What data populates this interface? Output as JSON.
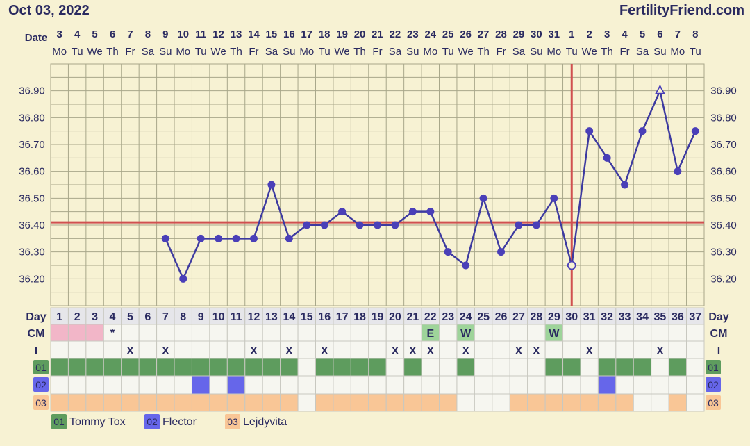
{
  "header": {
    "date": "Oct 03, 2022",
    "brand": "FertilityFriend.com"
  },
  "row_labels": {
    "date": "Date",
    "day": "Day",
    "cm": "CM",
    "intercourse": "I",
    "med_01": "01",
    "med_02": "02",
    "med_03": "03"
  },
  "colors": {
    "grid": "#a8a78a",
    "line": "#3d3aa0",
    "marker": "#4a3fb8",
    "coverline": "#d05050",
    "period": "#f2b6c8",
    "cm_fill": "#9ed49a",
    "med_01": "#5e9c5e",
    "med_02": "#6666ea",
    "med_03": "#f9c696",
    "cell_bg": "#f6f6f0"
  },
  "chart_data": {
    "type": "line",
    "title": "",
    "ylabel": "",
    "xlabel": "",
    "ylim": [
      36.1,
      37.0
    ],
    "yticks": [
      36.2,
      36.3,
      36.4,
      36.5,
      36.6,
      36.7,
      36.8,
      36.9
    ],
    "ytick_labels": [
      "36.20",
      "36.30",
      "36.40",
      "36.50",
      "36.60",
      "36.70",
      "36.80",
      "36.90"
    ],
    "dates": [
      "3",
      "4",
      "5",
      "6",
      "7",
      "8",
      "9",
      "10",
      "11",
      "12",
      "13",
      "14",
      "15",
      "16",
      "17",
      "18",
      "19",
      "20",
      "21",
      "22",
      "23",
      "24",
      "25",
      "26",
      "27",
      "28",
      "29",
      "30",
      "31",
      "1",
      "2",
      "3",
      "4",
      "5",
      "6",
      "7",
      "8"
    ],
    "weekdays": [
      "Mo",
      "Tu",
      "We",
      "Th",
      "Fr",
      "Sa",
      "Su",
      "Mo",
      "Tu",
      "We",
      "Th",
      "Fr",
      "Sa",
      "Su",
      "Mo",
      "Tu",
      "We",
      "Th",
      "Fr",
      "Sa",
      "Su",
      "Mo",
      "Tu",
      "We",
      "Th",
      "Fr",
      "Sa",
      "Su",
      "Mo",
      "Tu",
      "We",
      "Th",
      "Fr",
      "Sa",
      "Su",
      "Mo",
      "Tu"
    ],
    "cycle_days": [
      "1",
      "2",
      "3",
      "4",
      "5",
      "6",
      "7",
      "8",
      "9",
      "10",
      "11",
      "12",
      "13",
      "14",
      "15",
      "16",
      "17",
      "18",
      "19",
      "20",
      "21",
      "22",
      "23",
      "24",
      "25",
      "26",
      "27",
      "28",
      "29",
      "30",
      "31",
      "32",
      "33",
      "34",
      "35",
      "36",
      "37"
    ],
    "temperatures": [
      null,
      null,
      null,
      null,
      null,
      null,
      36.35,
      36.2,
      36.35,
      36.35,
      36.35,
      36.35,
      36.55,
      36.35,
      36.4,
      36.4,
      36.45,
      36.4,
      36.4,
      36.4,
      36.45,
      36.45,
      36.3,
      36.25,
      36.5,
      36.3,
      36.4,
      36.4,
      36.5,
      36.25,
      36.75,
      36.65,
      36.55,
      36.75,
      36.9,
      36.6,
      36.75
    ],
    "open_marker_days": [
      30,
      35
    ],
    "open_marker_shapes": {
      "30": "circle",
      "35": "triangle"
    },
    "coverline": 36.41,
    "ovulation_day": 30,
    "period_days": [
      1,
      2,
      3
    ],
    "spotting_days": [
      4
    ],
    "spotting_symbol": "*",
    "cervical_mucus": {
      "22": "E",
      "24": "W",
      "29": "W"
    },
    "intercourse_days": [
      5,
      7,
      12,
      14,
      16,
      20,
      21,
      22,
      24,
      27,
      28,
      31,
      35
    ],
    "intercourse_symbol": "X",
    "medications": [
      {
        "code": "01",
        "name": "Tommy Tox",
        "days": [
          1,
          2,
          3,
          4,
          5,
          6,
          7,
          8,
          9,
          10,
          11,
          12,
          13,
          14,
          16,
          17,
          18,
          19,
          21,
          24,
          29,
          30,
          32,
          33,
          34,
          36
        ]
      },
      {
        "code": "02",
        "name": "Flector",
        "days": [
          9,
          11,
          32
        ]
      },
      {
        "code": "03",
        "name": "Lejdyvita",
        "days": [
          1,
          2,
          3,
          4,
          5,
          6,
          7,
          8,
          9,
          10,
          11,
          12,
          13,
          14,
          16,
          17,
          18,
          19,
          20,
          21,
          22,
          23,
          27,
          28,
          29,
          30,
          31,
          32,
          33,
          36
        ]
      }
    ]
  }
}
